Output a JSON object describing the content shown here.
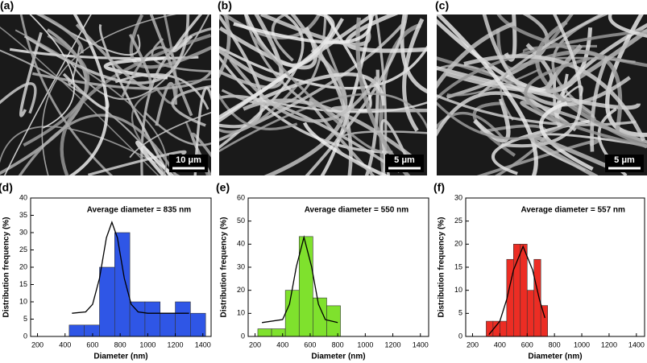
{
  "images": [
    {
      "label": "(a)",
      "scale_bar": "10 μm"
    },
    {
      "label": "(b)",
      "scale_bar": "5 μm"
    },
    {
      "label": "(c)",
      "scale_bar": "5 μm"
    }
  ],
  "chart_data": [
    {
      "type": "histogram",
      "label": "(d)",
      "annotation": "Average diameter = 835 nm",
      "x_label": "Diameter (nm)",
      "y_label": "Distribution frequency (%)",
      "color": "#2f56e6",
      "bins": [
        430,
        540,
        650,
        760,
        870,
        980,
        1090,
        1200,
        1310,
        1420
      ],
      "counts": [
        3.3,
        3.3,
        20,
        30,
        10,
        10,
        6.7,
        10,
        6.7
      ],
      "fit": {
        "x": [
          450,
          550,
          600,
          650,
          700,
          740,
          780,
          830,
          880,
          930,
          1000,
          1300
        ],
        "y": [
          6.7,
          7.1,
          9.3,
          16.8,
          28.5,
          33,
          28.5,
          16.8,
          9.3,
          7.1,
          6.7,
          6.7
        ]
      },
      "xlim": [
        150,
        1460
      ],
      "xticks": [
        200,
        400,
        600,
        800,
        1000,
        1200,
        1400
      ],
      "ylim": [
        0,
        40
      ],
      "yticks": [
        0,
        5,
        10,
        15,
        20,
        25,
        30,
        35,
        40
      ]
    },
    {
      "type": "histogram",
      "label": "(e)",
      "annotation": "Average diameter = 550 nm",
      "x_label": "Diameter (nm)",
      "y_label": "Distribution frequency (%)",
      "color": "#7fe12d",
      "bins": [
        220,
        320,
        420,
        520,
        620,
        720,
        820
      ],
      "counts": [
        3.3,
        3.3,
        20,
        43.3,
        16.7,
        13.3
      ],
      "fit": {
        "x": [
          250,
          400,
          450,
          500,
          555,
          610,
          660,
          710,
          800
        ],
        "y": [
          6,
          7.3,
          14,
          30.3,
          43,
          30.3,
          14,
          7.3,
          6
        ]
      },
      "xlim": [
        150,
        1460
      ],
      "xticks": [
        200,
        400,
        600,
        800,
        1000,
        1200,
        1400
      ],
      "ylim": [
        0,
        60
      ],
      "yticks": [
        0,
        10,
        20,
        30,
        40,
        50,
        60
      ]
    },
    {
      "type": "histogram",
      "label": "(f)",
      "annotation": "Average diameter = 557 nm",
      "x_label": "Diameter (nm)",
      "y_label": "Distribution frequency (%)",
      "color": "#ec2d24",
      "bins": [
        300,
        350,
        400,
        450,
        500,
        550,
        600,
        650,
        700,
        750
      ],
      "counts": [
        3.3,
        3.3,
        3.3,
        16.7,
        20,
        20,
        10,
        16.7,
        6.7
      ],
      "fit": {
        "x": [
          320,
          400,
          450,
          500,
          570,
          640,
          690,
          730
        ],
        "y": [
          0.4,
          3.3,
          8,
          14.4,
          19.5,
          14.4,
          8,
          4
        ]
      },
      "xlim": [
        150,
        1460
      ],
      "xticks": [
        200,
        400,
        600,
        800,
        1000,
        1200,
        1400
      ],
      "ylim": [
        0,
        30
      ],
      "yticks": [
        0,
        5,
        10,
        15,
        20,
        25,
        30
      ]
    }
  ]
}
